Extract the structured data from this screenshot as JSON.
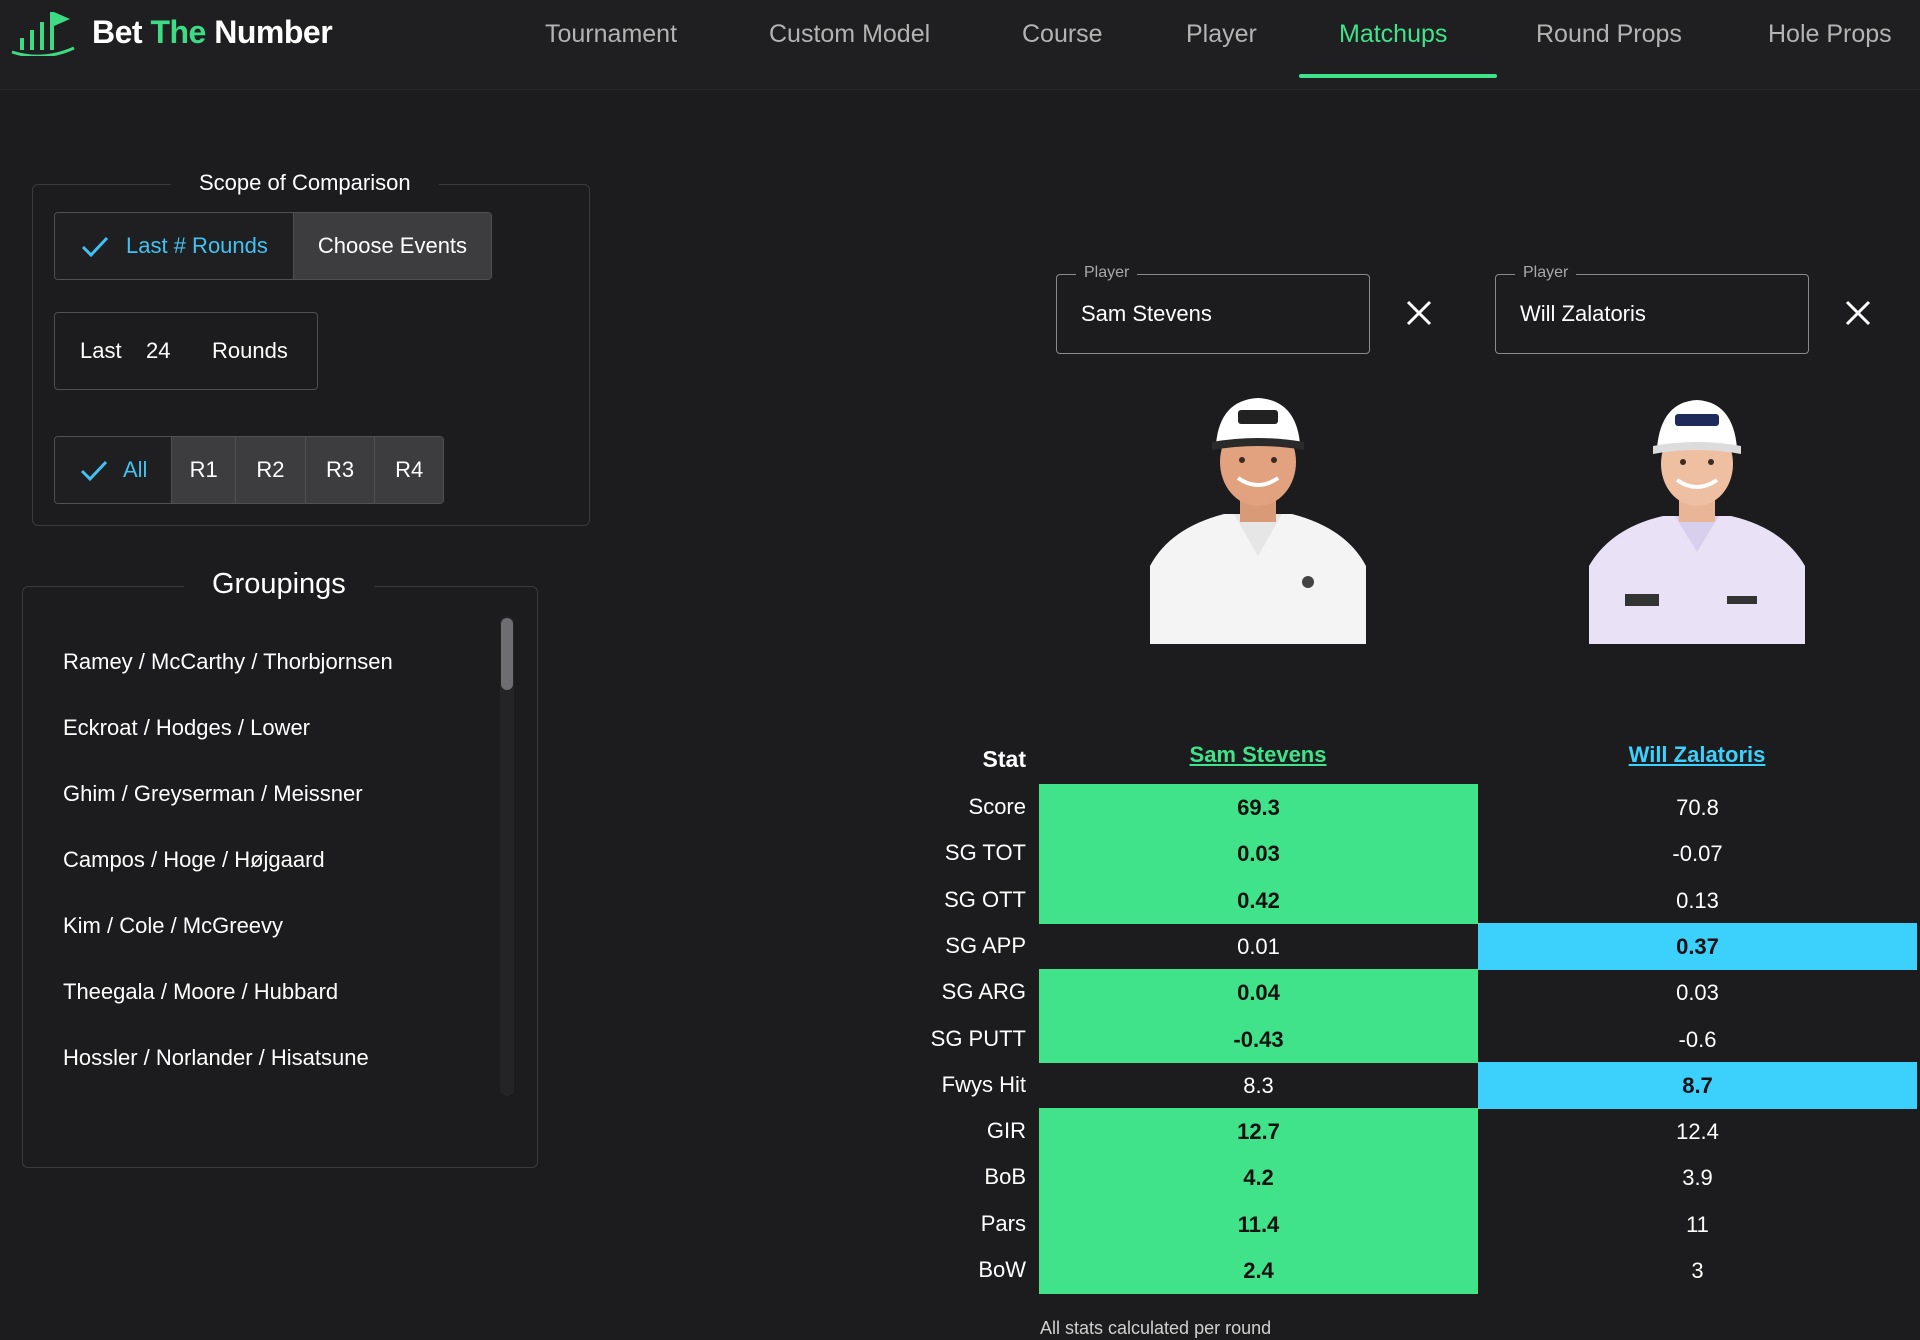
{
  "brand": {
    "part1": "Bet ",
    "part2": "The",
    "part3": " Number"
  },
  "colors": {
    "accent_green": "#41e38a",
    "accent_blue": "#3cd0fc",
    "selected_text": "#42c2f0"
  },
  "nav": {
    "tabs": [
      {
        "label": "Tournament"
      },
      {
        "label": "Custom Model"
      },
      {
        "label": "Course"
      },
      {
        "label": "Player"
      },
      {
        "label": "Matchups",
        "active": true
      },
      {
        "label": "Round Props"
      },
      {
        "label": "Hole Props"
      }
    ]
  },
  "scope": {
    "title": "Scope of Comparison",
    "mode_options": [
      {
        "label": "Last # Rounds",
        "selected": true
      },
      {
        "label": "Choose Events",
        "selected": false
      }
    ],
    "last_prefix": "Last",
    "last_value": "24",
    "last_suffix": "Rounds",
    "round_options": [
      {
        "label": "All",
        "selected": true
      },
      {
        "label": "R1"
      },
      {
        "label": "R2"
      },
      {
        "label": "R3"
      },
      {
        "label": "R4"
      }
    ]
  },
  "groupings": {
    "title": "Groupings",
    "items": [
      "Ramey / McCarthy / Thorbjornsen",
      "Eckroat / Hodges / Lower",
      "Ghim / Greyserman / Meissner",
      "Campos / Hoge / Højgaard",
      "Kim / Cole / McGreevy",
      "Theegala / Moore / Hubbard",
      "Hossler / Norlander / Hisatsune"
    ]
  },
  "players": {
    "field_label": "Player",
    "p1": {
      "name": "Sam Stevens"
    },
    "p2": {
      "name": "Will Zalatoris"
    }
  },
  "stats": {
    "header": "Stat",
    "rows": [
      {
        "stat": "Score",
        "p1": "69.3",
        "p2": "70.8",
        "winner": "p1"
      },
      {
        "stat": "SG TOT",
        "p1": "0.03",
        "p2": "-0.07",
        "winner": "p1"
      },
      {
        "stat": "SG OTT",
        "p1": "0.42",
        "p2": "0.13",
        "winner": "p1"
      },
      {
        "stat": "SG APP",
        "p1": "0.01",
        "p2": "0.37",
        "winner": "p2"
      },
      {
        "stat": "SG ARG",
        "p1": "0.04",
        "p2": "0.03",
        "winner": "p1"
      },
      {
        "stat": "SG PUTT",
        "p1": "-0.43",
        "p2": "-0.6",
        "winner": "p1"
      },
      {
        "stat": "Fwys Hit",
        "p1": "8.3",
        "p2": "8.7",
        "winner": "p2"
      },
      {
        "stat": "GIR",
        "p1": "12.7",
        "p2": "12.4",
        "winner": "p1"
      },
      {
        "stat": "BoB",
        "p1": "4.2",
        "p2": "3.9",
        "winner": "p1"
      },
      {
        "stat": "Pars",
        "p1": "11.4",
        "p2": "11",
        "winner": "p1"
      },
      {
        "stat": "BoW",
        "p1": "2.4",
        "p2": "3",
        "winner": "p1"
      }
    ],
    "footnote": "All stats calculated per round"
  }
}
